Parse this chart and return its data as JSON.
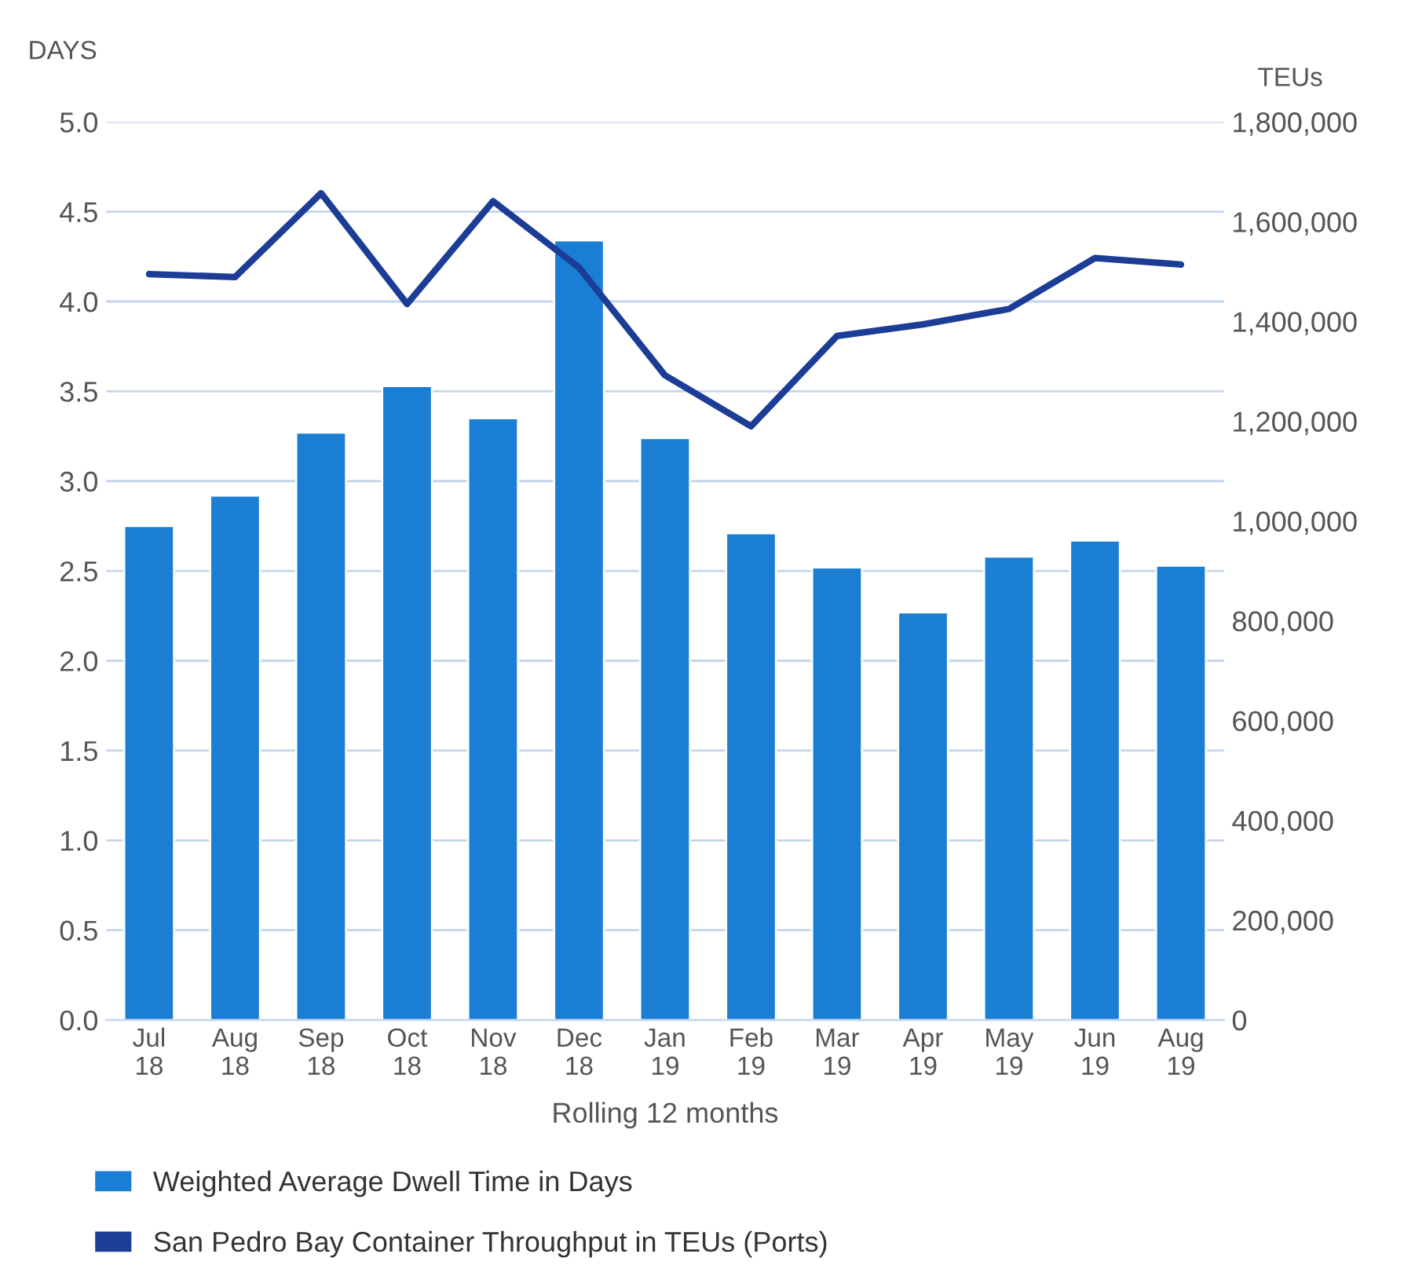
{
  "chart_data": {
    "type": "bar",
    "ylabel": "DAYS",
    "y2label": "TEUs",
    "xlabel": "Rolling 12 months",
    "categories": [
      "Jul\n18",
      "Aug\n18",
      "Sep\n18",
      "Oct\n18",
      "Nov\n18",
      "Dec\n18",
      "Jan\n19",
      "Feb\n19",
      "Mar\n19",
      "Apr\n19",
      "May\n19",
      "Jun\n19",
      "Aug\n19"
    ],
    "series": [
      {
        "name": "Weighted Average Dwell Time in Days",
        "color": "#1a7fd4",
        "values": [
          2.75,
          2.92,
          3.27,
          3.53,
          3.35,
          4.34,
          3.24,
          2.71,
          2.52,
          2.27,
          2.58,
          2.67,
          2.53
        ]
      },
      {
        "name": "San Pedro Bay Container Throughput in TEUs (Ports)",
        "type": "line",
        "axis": "y2",
        "color": "#1c3d96",
        "values": [
          1495000,
          1489000,
          1657000,
          1435000,
          1641000,
          1508000,
          1292000,
          1190000,
          1371000,
          1394000,
          1425000,
          1527000,
          1514000
        ]
      }
    ],
    "ylim": [
      0,
      5
    ],
    "yticks": [
      {
        "value": 0,
        "label": "0.0"
      },
      {
        "value": 0.5,
        "label": "0.5"
      },
      {
        "value": 1,
        "label": "1.0"
      },
      {
        "value": 1.5,
        "label": "1.5"
      },
      {
        "value": 2,
        "label": "2.0"
      },
      {
        "value": 2.5,
        "label": "2.5"
      },
      {
        "value": 3,
        "label": "3.0"
      },
      {
        "value": 3.5,
        "label": "3.5"
      },
      {
        "value": 4,
        "label": "4.0"
      },
      {
        "value": 4.5,
        "label": "4.5"
      },
      {
        "value": 5,
        "label": "5.0"
      }
    ],
    "y2lim": [
      0,
      1800000
    ],
    "y2ticks": [
      {
        "value": 0,
        "label": "0"
      },
      {
        "value": 200000,
        "label": "200,000"
      },
      {
        "value": 400000,
        "label": "400,000"
      },
      {
        "value": 600000,
        "label": "600,000"
      },
      {
        "value": 800000,
        "label": "800,000"
      },
      {
        "value": 1000000,
        "label": "1,000,000"
      },
      {
        "value": 1200000,
        "label": "1,200,000"
      },
      {
        "value": 1400000,
        "label": "1,400,000"
      },
      {
        "value": 1600000,
        "label": "1,600,000"
      },
      {
        "value": 1800000,
        "label": "1,800,000"
      }
    ],
    "grid": "y",
    "legend": "bottom"
  }
}
